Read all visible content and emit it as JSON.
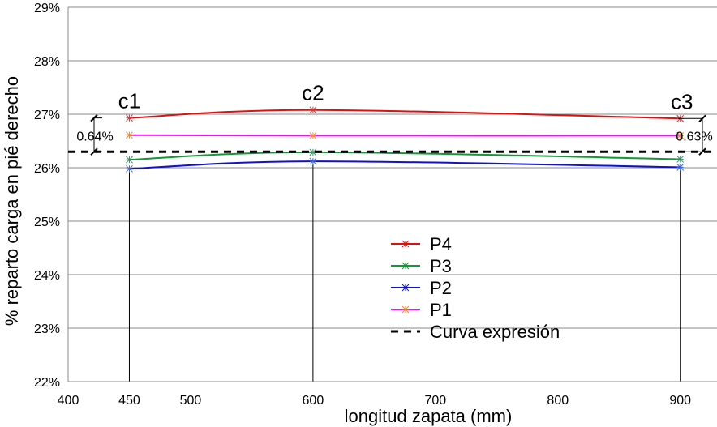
{
  "chart_data": {
    "type": "line",
    "xlabel": "longitud zapata (mm)",
    "ylabel": "% reparto carga en pié derecho",
    "xlim": [
      400,
      930
    ],
    "ylim": [
      22,
      29
    ],
    "x_ticks": [
      "400",
      "450",
      "500",
      "600",
      "700",
      "800",
      "900"
    ],
    "x_tick_values": [
      400,
      450,
      500,
      600,
      700,
      800,
      900
    ],
    "y_ticks": [
      "22%",
      "23%",
      "24%",
      "25%",
      "26%",
      "27%",
      "28%",
      "29%"
    ],
    "y_tick_values": [
      22,
      23,
      24,
      25,
      26,
      27,
      28,
      29
    ],
    "grid": "horizontal",
    "legend_position": "center-right",
    "x": [
      450,
      600,
      900
    ],
    "series": [
      {
        "name": "P4",
        "color": "#dd1111",
        "values": [
          26.93,
          27.08,
          26.92
        ]
      },
      {
        "name": "P3",
        "color": "#119933",
        "values": [
          26.15,
          26.29,
          26.16
        ]
      },
      {
        "name": "P2",
        "color": "#1111cc",
        "values": [
          25.98,
          26.12,
          26.01
        ]
      },
      {
        "name": "P1",
        "color": "#ee11ee",
        "values": [
          26.61,
          26.6,
          26.6
        ]
      },
      {
        "name": "Curva expresión",
        "color": "#000000",
        "dashed": true,
        "value": 26.3
      }
    ],
    "annotations": [
      {
        "text": "c1",
        "x": 450
      },
      {
        "text": "c2",
        "x": 600
      },
      {
        "text": "c3",
        "x": 900
      }
    ],
    "dimension_labels": [
      {
        "text": "0.64%",
        "from": 26.3,
        "to": 26.93,
        "side": "left"
      },
      {
        "text": "0.63%",
        "from": 26.3,
        "to": 26.92,
        "side": "right"
      }
    ]
  }
}
